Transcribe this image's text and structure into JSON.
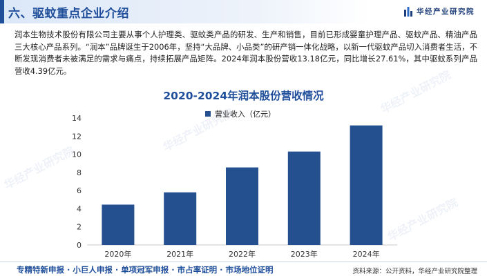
{
  "header": {
    "title": "六、驱蚊重点企业介绍",
    "brand": "华经产业研究院"
  },
  "intro": "润本生物技术股份有限公司主要从事个人护理类、驱蚊类产品的研发、生产和销售，目前已形成婴童护理产品、驱蚊产品、精油产品三大核心产品系列。“润本”品牌诞生于2006年，坚持“大品牌、小品类”的研产销一体化战略，以新一代驱蚊产品切入消费者生活，不断发现消费者未被满足的需求与痛点，持续拓展产品矩阵。2024年润本股份营收13.18亿元，同比增长27.61%，其中驱蚊系列产品营收4.39亿元。",
  "chart_data": {
    "type": "bar",
    "title": "2020-2024年润本股份营收情况",
    "categories": [
      "2020年",
      "2021年",
      "2022年",
      "2023年",
      "2024年"
    ],
    "series": [
      {
        "name": "营业收入（亿元）",
        "values": [
          4.45,
          5.8,
          8.55,
          10.3,
          13.18
        ]
      }
    ],
    "xlabel": "",
    "ylabel": "",
    "ylim": [
      0,
      14
    ],
    "yticks": [
      0,
      2,
      4,
      6,
      8,
      10,
      12,
      14
    ],
    "grid": false,
    "legend": "top-center",
    "bar_color": "#24508f"
  },
  "footer": {
    "services": "专精特新申报 · 小巨人申报 · 单项冠军申报 · 市占率证明 · 市场地位证明",
    "source": "资料来源：公开资料，华经产业研究院整理"
  },
  "colors": {
    "accent": "#1f4e9a",
    "bar": "#24508f"
  },
  "watermark_text": "华经产业研究院"
}
